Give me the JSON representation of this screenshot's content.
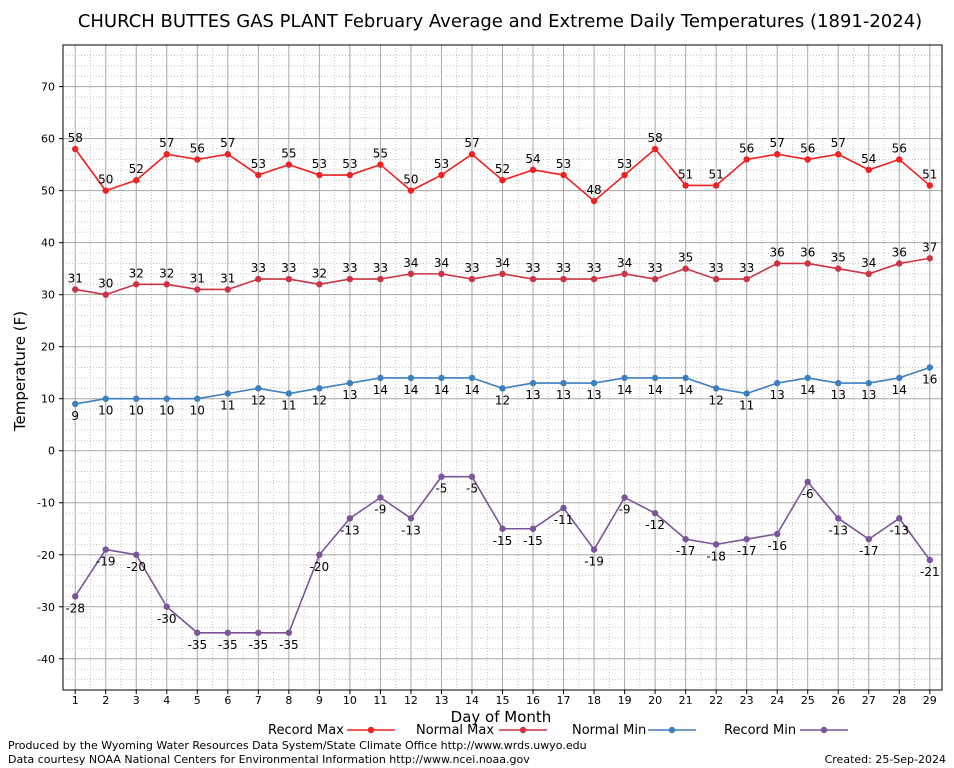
{
  "chart_data": {
    "type": "line",
    "title": "CHURCH BUTTES GAS PLANT February Average and Extreme Daily Temperatures (1891-2024)",
    "xlabel": "Day of Month",
    "ylabel": "Temperature (F)",
    "xlim": [
      0.6,
      29.4
    ],
    "ylim": [
      -46,
      78
    ],
    "y_ticks": [
      -40,
      -30,
      -20,
      -10,
      0,
      10,
      20,
      30,
      40,
      50,
      60,
      70
    ],
    "x": [
      1,
      2,
      3,
      4,
      5,
      6,
      7,
      8,
      9,
      10,
      11,
      12,
      13,
      14,
      15,
      16,
      17,
      18,
      19,
      20,
      21,
      22,
      23,
      24,
      25,
      26,
      27,
      28,
      29
    ],
    "grid": true,
    "legend_position": "bottom",
    "series": [
      {
        "name": "Record Max",
        "color": "#ee2222",
        "values": [
          58,
          50,
          52,
          57,
          56,
          57,
          53,
          55,
          53,
          53,
          55,
          50,
          53,
          57,
          52,
          54,
          53,
          48,
          53,
          58,
          51,
          51,
          56,
          57,
          56,
          57,
          54,
          56,
          51
        ],
        "label_pos": "above"
      },
      {
        "name": "Normal Max",
        "color": "#cc3344",
        "values": [
          31,
          30,
          32,
          32,
          31,
          31,
          33,
          33,
          32,
          33,
          33,
          34,
          34,
          33,
          34,
          33,
          33,
          33,
          34,
          33,
          35,
          33,
          33,
          36,
          36,
          35,
          34,
          36,
          37
        ],
        "label_pos": "above"
      },
      {
        "name": "Normal Min",
        "color": "#3d7fbf",
        "values": [
          9,
          10,
          10,
          10,
          10,
          11,
          12,
          11,
          12,
          13,
          14,
          14,
          14,
          14,
          12,
          13,
          13,
          13,
          14,
          14,
          14,
          12,
          11,
          13,
          14,
          13,
          13,
          14,
          16
        ],
        "label_pos": "below"
      },
      {
        "name": "Record Min",
        "color": "#7a5599",
        "values": [
          -28,
          -19,
          -20,
          -30,
          -35,
          -35,
          -35,
          -35,
          -20,
          -13,
          -9,
          -13,
          -5,
          -5,
          -15,
          -15,
          -11,
          -19,
          -9,
          -12,
          -17,
          -18,
          -17,
          -16,
          -6,
          -13,
          -17,
          -13,
          -21
        ],
        "label_pos": "below"
      }
    ]
  },
  "footer": {
    "credit_line1": "Produced by the Wyoming Water Resources Data System/State Climate Office http://www.wrds.uwyo.edu",
    "credit_line2": "Data courtesy NOAA National Centers for Environmental Information http://www.ncei.noaa.gov",
    "created": "Created:  25-Sep-2024"
  }
}
